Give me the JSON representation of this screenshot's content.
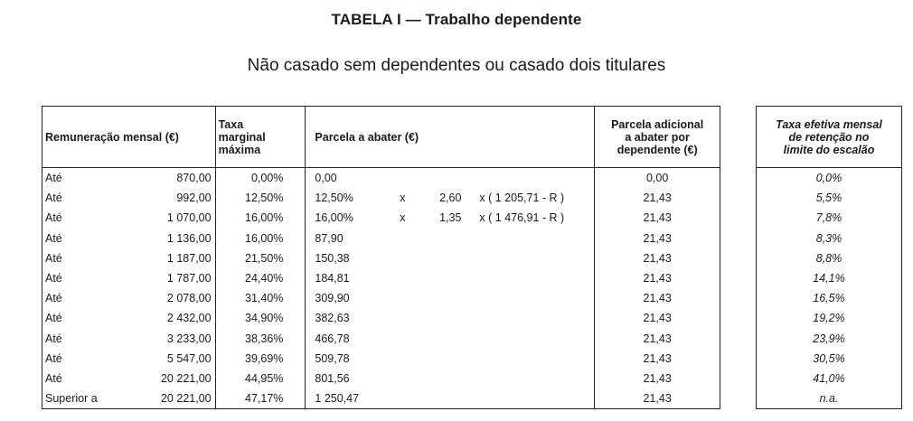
{
  "title": "TABELA I — Trabalho dependente",
  "subtitle": "Não casado sem dependentes ou casado dois titulares",
  "headers": {
    "remuneracao": "Remuneração mensal (€)",
    "taxa": [
      "Taxa",
      "marginal",
      "máxima"
    ],
    "parcela": "Parcela a abater (€)",
    "adicional": [
      "Parcela adicional",
      "a abater por",
      "dependente (€)"
    ],
    "efetiva": [
      "Taxa efetiva mensal",
      "de retenção no",
      "limite do escalão"
    ]
  },
  "rows": [
    {
      "label": "Até",
      "value": "870,00",
      "taxa": "0,00%",
      "parcela": "0,00",
      "factor_x": "",
      "factor": "",
      "formula": "",
      "adicional": "0,00",
      "efetiva": "0,0%"
    },
    {
      "label": "Até",
      "value": "992,00",
      "taxa": "12,50%",
      "parcela": "12,50%",
      "factor_x": "x",
      "factor": "2,60",
      "formula": "x (  1 205,71  - R )",
      "adicional": "21,43",
      "efetiva": "5,5%"
    },
    {
      "label": "Até",
      "value": "1 070,00",
      "taxa": "16,00%",
      "parcela": "16,00%",
      "factor_x": "x",
      "factor": "1,35",
      "formula": "x (  1 476,91  - R )",
      "adicional": "21,43",
      "efetiva": "7,8%"
    },
    {
      "label": "Até",
      "value": "1 136,00",
      "taxa": "16,00%",
      "parcela": "87,90",
      "factor_x": "",
      "factor": "",
      "formula": "",
      "adicional": "21,43",
      "efetiva": "8,3%"
    },
    {
      "label": "Até",
      "value": "1 187,00",
      "taxa": "21,50%",
      "parcela": "150,38",
      "factor_x": "",
      "factor": "",
      "formula": "",
      "adicional": "21,43",
      "efetiva": "8,8%"
    },
    {
      "label": "Até",
      "value": "1 787,00",
      "taxa": "24,40%",
      "parcela": "184,81",
      "factor_x": "",
      "factor": "",
      "formula": "",
      "adicional": "21,43",
      "efetiva": "14,1%"
    },
    {
      "label": "Até",
      "value": "2 078,00",
      "taxa": "31,40%",
      "parcela": "309,90",
      "factor_x": "",
      "factor": "",
      "formula": "",
      "adicional": "21,43",
      "efetiva": "16,5%"
    },
    {
      "label": "Até",
      "value": "2 432,00",
      "taxa": "34,90%",
      "parcela": "382,63",
      "factor_x": "",
      "factor": "",
      "formula": "",
      "adicional": "21,43",
      "efetiva": "19,2%"
    },
    {
      "label": "Até",
      "value": "3 233,00",
      "taxa": "38,36%",
      "parcela": "466,78",
      "factor_x": "",
      "factor": "",
      "formula": "",
      "adicional": "21,43",
      "efetiva": "23,9%"
    },
    {
      "label": "Até",
      "value": "5 547,00",
      "taxa": "39,69%",
      "parcela": "509,78",
      "factor_x": "",
      "factor": "",
      "formula": "",
      "adicional": "21,43",
      "efetiva": "30,5%"
    },
    {
      "label": "Até",
      "value": "20 221,00",
      "taxa": "44,95%",
      "parcela": "801,56",
      "factor_x": "",
      "factor": "",
      "formula": "",
      "adicional": "21,43",
      "efetiva": "41,0%"
    },
    {
      "label": "Superior a",
      "value": "20 221,00",
      "taxa": "47,17%",
      "parcela": "1 250,47",
      "factor_x": "",
      "factor": "",
      "formula": "",
      "adicional": "21,43",
      "efetiva": "n.a."
    }
  ]
}
